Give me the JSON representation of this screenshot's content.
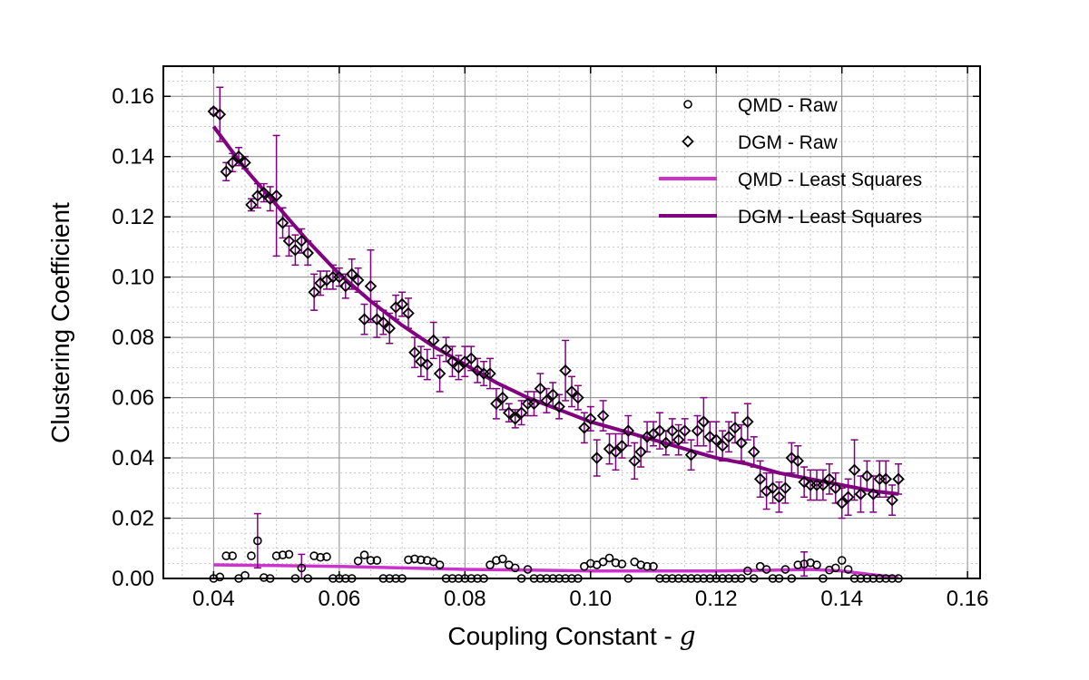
{
  "chart_data": {
    "type": "scatter",
    "title": "",
    "xlabel": "Coupling Constant - ",
    "xlabel_math": "g",
    "ylabel": "Clustering Coefficient",
    "xlim": [
      0.032,
      0.162
    ],
    "ylim": [
      0.0,
      0.17
    ],
    "xticks": [
      0.04,
      0.06,
      0.08,
      0.1,
      0.12,
      0.14,
      0.16
    ],
    "xtick_labels": [
      "0.04",
      "0.06",
      "0.08",
      "0.10",
      "0.12",
      "0.14",
      "0.16"
    ],
    "yticks": [
      0.0,
      0.02,
      0.04,
      0.06,
      0.08,
      0.1,
      0.12,
      0.14,
      0.16
    ],
    "ytick_labels": [
      "0.00",
      "0.02",
      "0.04",
      "0.06",
      "0.08",
      "0.10",
      "0.12",
      "0.14",
      "0.16"
    ],
    "grid": true,
    "legend_position": "top-right",
    "colors": {
      "qmd_fit": "#cc33cc",
      "dgm_fit": "#800080",
      "errorbar": "#800080",
      "marker": "#000000"
    },
    "series": [
      {
        "name": "QMD - Raw",
        "kind": "scatter",
        "marker": "circle",
        "x": [
          0.04,
          0.041,
          0.042,
          0.043,
          0.044,
          0.045,
          0.046,
          0.047,
          0.048,
          0.049,
          0.05,
          0.051,
          0.052,
          0.053,
          0.054,
          0.055,
          0.056,
          0.057,
          0.058,
          0.059,
          0.06,
          0.061,
          0.062,
          0.063,
          0.064,
          0.065,
          0.066,
          0.067,
          0.068,
          0.069,
          0.07,
          0.071,
          0.072,
          0.073,
          0.074,
          0.075,
          0.076,
          0.077,
          0.078,
          0.079,
          0.08,
          0.081,
          0.082,
          0.083,
          0.084,
          0.085,
          0.086,
          0.087,
          0.088,
          0.089,
          0.09,
          0.091,
          0.092,
          0.093,
          0.094,
          0.095,
          0.096,
          0.097,
          0.098,
          0.099,
          0.1,
          0.101,
          0.102,
          0.103,
          0.104,
          0.105,
          0.106,
          0.107,
          0.108,
          0.109,
          0.11,
          0.111,
          0.112,
          0.113,
          0.114,
          0.115,
          0.116,
          0.117,
          0.118,
          0.119,
          0.12,
          0.121,
          0.122,
          0.123,
          0.124,
          0.125,
          0.126,
          0.127,
          0.128,
          0.129,
          0.13,
          0.131,
          0.132,
          0.133,
          0.134,
          0.135,
          0.136,
          0.137,
          0.138,
          0.139,
          0.14,
          0.141,
          0.142,
          0.143,
          0.144,
          0.145,
          0.146,
          0.147,
          0.148,
          0.149
        ],
        "y": [
          0.0,
          0.0005,
          0.0075,
          0.0075,
          0.0,
          0.001,
          0.0075,
          0.0125,
          0.0003,
          0.0,
          0.0075,
          0.0078,
          0.008,
          0.0,
          0.0035,
          0.0,
          0.0075,
          0.007,
          0.0072,
          0.0,
          0.0,
          0.0,
          0.0,
          0.0058,
          0.0078,
          0.006,
          0.006,
          0.0,
          0.0,
          0.0,
          0.0,
          0.0062,
          0.0065,
          0.0062,
          0.006,
          0.0055,
          0.0045,
          0.0,
          0.0,
          0.0,
          0.0,
          0.0,
          0.0,
          0.0,
          0.0045,
          0.006,
          0.0065,
          0.0045,
          0.0035,
          0.0,
          0.003,
          0.0,
          0.0,
          0.0,
          0.0,
          0.0,
          0.0,
          0.0,
          0.0,
          0.004,
          0.005,
          0.0045,
          0.0055,
          0.0068,
          0.0052,
          0.0048,
          0.0,
          0.0055,
          0.0045,
          0.004,
          0.004,
          0.0,
          0.0,
          0.0,
          0.0,
          0.0,
          0.0,
          0.0,
          0.0,
          0.0,
          0.0,
          0.0,
          0.0,
          0.0,
          0.0,
          0.0025,
          0.0,
          0.004,
          0.003,
          0.0,
          0.0,
          0.003,
          0.0,
          0.0045,
          0.0048,
          0.0052,
          0.0045,
          0.0,
          0.0028,
          0.0035,
          0.006,
          0.003,
          0.0,
          0.0,
          0.0,
          0.0,
          0.0,
          0.0,
          0.0,
          0.0
        ],
        "yerr": [
          0.0,
          0.0,
          0.0,
          0.0,
          0.0,
          0.0,
          0.0,
          0.009,
          0.0,
          0.0,
          0.0,
          0.0,
          0.0,
          0.0,
          0.0045,
          0.0,
          0.0,
          0.0,
          0.0,
          0.0,
          0.0,
          0.0,
          0.0,
          0.0,
          0.0,
          0.0,
          0.0,
          0.0,
          0.0,
          0.0,
          0.0,
          0.0,
          0.0,
          0.0,
          0.0,
          0.0,
          0.0,
          0.0,
          0.0,
          0.0,
          0.0,
          0.0,
          0.0,
          0.0,
          0.0,
          0.0,
          0.0,
          0.0,
          0.0,
          0.0,
          0.0,
          0.0,
          0.0,
          0.0,
          0.0,
          0.0,
          0.0,
          0.0,
          0.0,
          0.0,
          0.0,
          0.0,
          0.0,
          0.0,
          0.0,
          0.0,
          0.0,
          0.0,
          0.0,
          0.0,
          0.0,
          0.0,
          0.0,
          0.0,
          0.0,
          0.0,
          0.0,
          0.0,
          0.0,
          0.0,
          0.0,
          0.0,
          0.0,
          0.0,
          0.0,
          0.0,
          0.0,
          0.0,
          0.0,
          0.0,
          0.0,
          0.0,
          0.0,
          0.0,
          0.004,
          0.0,
          0.0,
          0.0,
          0.0,
          0.0,
          0.0,
          0.0,
          0.0,
          0.0,
          0.0,
          0.0,
          0.0,
          0.0,
          0.0,
          0.0
        ]
      },
      {
        "name": "DGM - Raw",
        "kind": "scatter",
        "marker": "diamond",
        "x": [
          0.04,
          0.041,
          0.042,
          0.043,
          0.044,
          0.045,
          0.046,
          0.047,
          0.048,
          0.049,
          0.05,
          0.051,
          0.052,
          0.053,
          0.054,
          0.055,
          0.056,
          0.057,
          0.058,
          0.059,
          0.06,
          0.061,
          0.062,
          0.063,
          0.064,
          0.065,
          0.066,
          0.067,
          0.068,
          0.069,
          0.07,
          0.071,
          0.072,
          0.073,
          0.074,
          0.075,
          0.076,
          0.077,
          0.078,
          0.079,
          0.08,
          0.081,
          0.082,
          0.083,
          0.084,
          0.085,
          0.086,
          0.087,
          0.088,
          0.089,
          0.09,
          0.091,
          0.092,
          0.093,
          0.094,
          0.095,
          0.096,
          0.097,
          0.098,
          0.099,
          0.1,
          0.101,
          0.102,
          0.103,
          0.104,
          0.105,
          0.106,
          0.107,
          0.108,
          0.109,
          0.11,
          0.111,
          0.112,
          0.113,
          0.114,
          0.115,
          0.116,
          0.117,
          0.118,
          0.119,
          0.12,
          0.121,
          0.122,
          0.123,
          0.124,
          0.125,
          0.126,
          0.127,
          0.128,
          0.129,
          0.13,
          0.131,
          0.132,
          0.133,
          0.134,
          0.135,
          0.136,
          0.137,
          0.138,
          0.139,
          0.14,
          0.141,
          0.142,
          0.143,
          0.144,
          0.145,
          0.146,
          0.147,
          0.148,
          0.149
        ],
        "y": [
          0.155,
          0.154,
          0.135,
          0.138,
          0.14,
          0.138,
          0.124,
          0.127,
          0.128,
          0.126,
          0.127,
          0.118,
          0.112,
          0.109,
          0.112,
          0.108,
          0.095,
          0.098,
          0.099,
          0.1,
          0.1,
          0.097,
          0.101,
          0.099,
          0.086,
          0.097,
          0.086,
          0.085,
          0.083,
          0.09,
          0.091,
          0.088,
          0.075,
          0.072,
          0.071,
          0.079,
          0.068,
          0.076,
          0.072,
          0.07,
          0.072,
          0.073,
          0.069,
          0.068,
          0.068,
          0.058,
          0.06,
          0.055,
          0.053,
          0.055,
          0.058,
          0.058,
          0.063,
          0.059,
          0.061,
          0.057,
          0.069,
          0.062,
          0.06,
          0.05,
          0.053,
          0.04,
          0.054,
          0.043,
          0.042,
          0.044,
          0.049,
          0.039,
          0.042,
          0.047,
          0.048,
          0.049,
          0.045,
          0.049,
          0.046,
          0.049,
          0.041,
          0.049,
          0.052,
          0.047,
          0.046,
          0.044,
          0.047,
          0.05,
          0.045,
          0.052,
          0.042,
          0.033,
          0.029,
          0.03,
          0.027,
          0.03,
          0.04,
          0.039,
          0.032,
          0.031,
          0.031,
          0.031,
          0.033,
          0.03,
          0.025,
          0.027,
          0.036,
          0.028,
          0.034,
          0.028,
          0.033,
          0.033,
          0.026,
          0.033
        ],
        "yerr": [
          0.001,
          0.009,
          0.003,
          0.003,
          0.003,
          0.002,
          0.002,
          0.004,
          0.003,
          0.004,
          0.02,
          0.005,
          0.005,
          0.005,
          0.004,
          0.004,
          0.006,
          0.004,
          0.003,
          0.004,
          0.003,
          0.004,
          0.005,
          0.004,
          0.005,
          0.012,
          0.006,
          0.004,
          0.005,
          0.004,
          0.004,
          0.005,
          0.005,
          0.005,
          0.005,
          0.006,
          0.006,
          0.004,
          0.005,
          0.004,
          0.005,
          0.004,
          0.004,
          0.004,
          0.005,
          0.005,
          0.004,
          0.003,
          0.003,
          0.004,
          0.004,
          0.004,
          0.005,
          0.004,
          0.004,
          0.004,
          0.01,
          0.005,
          0.004,
          0.005,
          0.004,
          0.006,
          0.005,
          0.005,
          0.006,
          0.004,
          0.005,
          0.006,
          0.005,
          0.005,
          0.004,
          0.006,
          0.004,
          0.004,
          0.005,
          0.004,
          0.005,
          0.005,
          0.008,
          0.005,
          0.006,
          0.005,
          0.005,
          0.005,
          0.006,
          0.006,
          0.005,
          0.006,
          0.006,
          0.005,
          0.005,
          0.005,
          0.005,
          0.005,
          0.005,
          0.005,
          0.005,
          0.005,
          0.005,
          0.005,
          0.005,
          0.006,
          0.01,
          0.006,
          0.005,
          0.006,
          0.006,
          0.006,
          0.005,
          0.005
        ]
      },
      {
        "name": "QMD - Least Squares",
        "kind": "line",
        "x": [
          0.04,
          0.05,
          0.06,
          0.07,
          0.08,
          0.09,
          0.1,
          0.11,
          0.12,
          0.13,
          0.135,
          0.14,
          0.145,
          0.149
        ],
        "y": [
          0.0045,
          0.0043,
          0.004,
          0.0035,
          0.003,
          0.0028,
          0.0025,
          0.0025,
          0.0025,
          0.0028,
          0.003,
          0.0025,
          0.0012,
          0.0003
        ]
      },
      {
        "name": "DGM - Least Squares",
        "kind": "line",
        "x": [
          0.04,
          0.045,
          0.05,
          0.055,
          0.06,
          0.065,
          0.07,
          0.075,
          0.08,
          0.085,
          0.09,
          0.095,
          0.1,
          0.105,
          0.11,
          0.115,
          0.12,
          0.125,
          0.13,
          0.135,
          0.14,
          0.145,
          0.149
        ],
        "y": [
          0.15,
          0.136,
          0.124,
          0.112,
          0.101,
          0.092,
          0.084,
          0.077,
          0.071,
          0.065,
          0.06,
          0.056,
          0.052,
          0.049,
          0.046,
          0.043,
          0.04,
          0.038,
          0.035,
          0.033,
          0.031,
          0.029,
          0.028
        ]
      }
    ]
  }
}
